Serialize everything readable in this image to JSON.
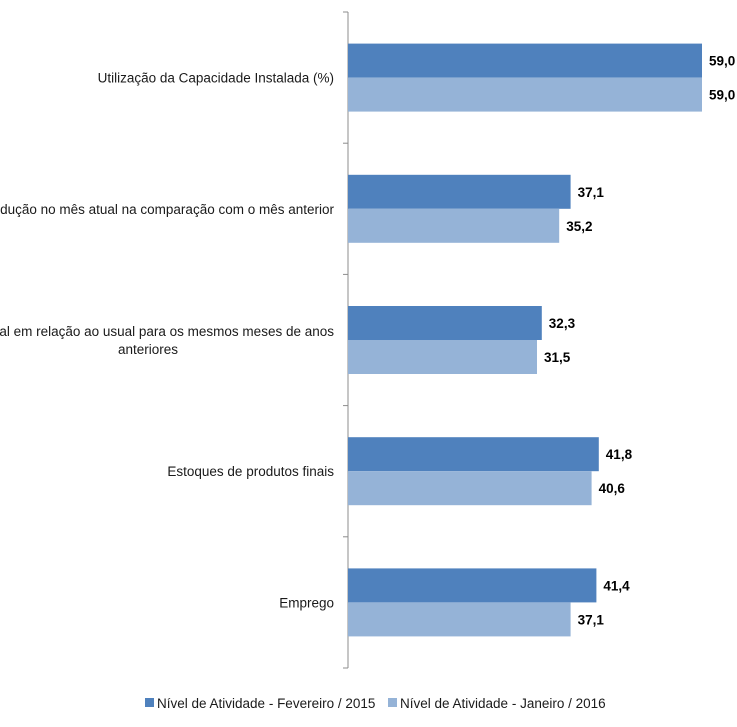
{
  "chart_data": {
    "type": "bar",
    "orientation": "horizontal",
    "categories": [
      [
        "Utilização da Capacidade Instalada (%)"
      ],
      [
        "Produção no mês atual na comparação com o mês anterior"
      ],
      [
        "mês atual em relação ao usual para os mesmos meses de anos",
        "anteriores"
      ],
      [
        "Estoques de produtos finais"
      ],
      [
        "Emprego"
      ]
    ],
    "series": [
      {
        "name": "Nível de Atividade - Fevereiro / 2015",
        "values": [
          59.0,
          37.1,
          32.3,
          41.8,
          41.4
        ],
        "color": "#4f81bd"
      },
      {
        "name": "Nível de Atividade - Janeiro / 2016",
        "values": [
          59.0,
          35.2,
          31.5,
          40.6,
          37.1
        ],
        "color": "#95b3d7"
      }
    ],
    "value_labels": [
      [
        "59,0",
        "37,1",
        "32,3",
        "41,8",
        "41,4"
      ],
      [
        "59,0",
        "35,2",
        "31,5",
        "40,6",
        "37,1"
      ]
    ],
    "xlim": [
      0,
      60
    ],
    "grid": false,
    "legend": "bottom"
  }
}
